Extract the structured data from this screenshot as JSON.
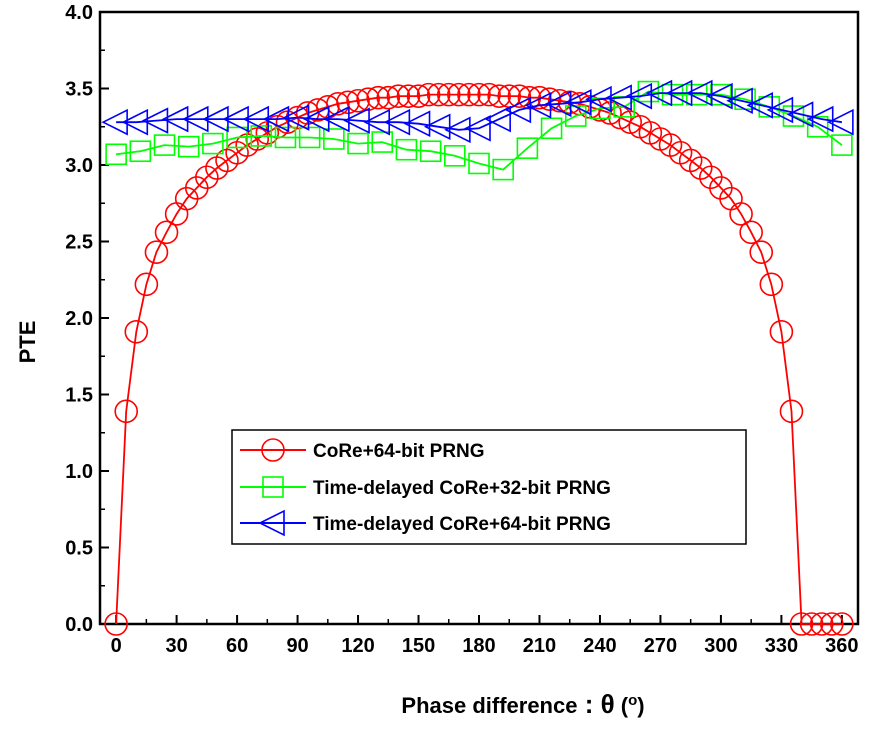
{
  "chart_data": {
    "type": "line",
    "xlabel_main": "Phase difference",
    "xlabel_sep": " : ",
    "xlabel_theta": "θ",
    "xlabel_unit_open": " (",
    "xlabel_unit_sup": "o",
    "xlabel_unit_close": ")",
    "ylabel": "PTE",
    "xlim": [
      -8,
      368
    ],
    "ylim": [
      0,
      4.0
    ],
    "xticks": [
      0,
      30,
      60,
      90,
      120,
      150,
      180,
      210,
      240,
      270,
      300,
      330,
      360
    ],
    "yticks": [
      0.0,
      0.5,
      1.0,
      1.5,
      2.0,
      2.5,
      3.0,
      3.5,
      4.0
    ],
    "ytick_labels": [
      "0.0",
      "0.5",
      "1.0",
      "1.5",
      "2.0",
      "2.5",
      "3.0",
      "3.5",
      "4.0"
    ],
    "grid": false,
    "legend_position": "lower-center",
    "series": [
      {
        "name": "CoRe+64-bit PRNG",
        "color": "#ff0000",
        "marker": "circle",
        "x": [
          0,
          5,
          10,
          15,
          20,
          25,
          30,
          35,
          40,
          45,
          50,
          55,
          60,
          65,
          70,
          75,
          80,
          85,
          90,
          95,
          100,
          105,
          110,
          115,
          120,
          125,
          130,
          135,
          140,
          145,
          150,
          155,
          160,
          165,
          170,
          175,
          180,
          185,
          190,
          195,
          200,
          205,
          210,
          215,
          220,
          225,
          230,
          235,
          240,
          245,
          250,
          255,
          260,
          265,
          270,
          275,
          280,
          285,
          290,
          295,
          300,
          305,
          310,
          315,
          320,
          325,
          330,
          335,
          340,
          345,
          350,
          355,
          360
        ],
        "y": [
          0.0,
          1.39,
          1.91,
          2.22,
          2.43,
          2.56,
          2.68,
          2.78,
          2.85,
          2.92,
          2.98,
          3.03,
          3.08,
          3.13,
          3.17,
          3.21,
          3.25,
          3.28,
          3.31,
          3.34,
          3.36,
          3.38,
          3.4,
          3.41,
          3.42,
          3.43,
          3.44,
          3.44,
          3.45,
          3.45,
          3.45,
          3.46,
          3.46,
          3.46,
          3.46,
          3.46,
          3.46,
          3.46,
          3.45,
          3.45,
          3.45,
          3.44,
          3.44,
          3.43,
          3.42,
          3.41,
          3.4,
          3.38,
          3.36,
          3.34,
          3.31,
          3.28,
          3.25,
          3.21,
          3.17,
          3.13,
          3.08,
          3.03,
          2.98,
          2.92,
          2.85,
          2.78,
          2.68,
          2.56,
          2.43,
          2.22,
          1.91,
          1.39,
          0.0,
          0.0,
          0.0,
          0.0,
          0.0
        ]
      },
      {
        "name": "Time-delayed CoRe+32-bit PRNG",
        "color": "#00ff00",
        "marker": "square",
        "x": [
          0,
          12,
          24,
          36,
          48,
          60,
          72,
          84,
          96,
          108,
          120,
          132,
          144,
          156,
          168,
          180,
          192,
          204,
          216,
          228,
          240,
          252,
          264,
          276,
          288,
          300,
          312,
          324,
          336,
          348,
          360
        ],
        "y": [
          3.07,
          3.09,
          3.13,
          3.12,
          3.14,
          3.18,
          3.19,
          3.18,
          3.18,
          3.17,
          3.14,
          3.15,
          3.1,
          3.09,
          3.06,
          3.01,
          2.97,
          3.11,
          3.24,
          3.32,
          3.37,
          3.38,
          3.48,
          3.46,
          3.46,
          3.46,
          3.43,
          3.38,
          3.32,
          3.25,
          3.13
        ]
      },
      {
        "name": "Time-delayed CoRe+64-bit PRNG",
        "color": "#0000ff",
        "marker": "left-triangle",
        "x": [
          0,
          10,
          20,
          30,
          40,
          50,
          60,
          70,
          80,
          90,
          100,
          110,
          120,
          130,
          140,
          150,
          160,
          170,
          180,
          190,
          200,
          210,
          220,
          230,
          240,
          250,
          260,
          270,
          280,
          290,
          300,
          310,
          320,
          330,
          340,
          350,
          360
        ],
        "y": [
          3.28,
          3.28,
          3.29,
          3.3,
          3.3,
          3.3,
          3.3,
          3.3,
          3.3,
          3.31,
          3.3,
          3.3,
          3.29,
          3.28,
          3.28,
          3.27,
          3.25,
          3.23,
          3.24,
          3.3,
          3.36,
          3.39,
          3.4,
          3.41,
          3.43,
          3.44,
          3.45,
          3.47,
          3.47,
          3.47,
          3.45,
          3.42,
          3.39,
          3.36,
          3.33,
          3.3,
          3.28
        ]
      }
    ]
  }
}
